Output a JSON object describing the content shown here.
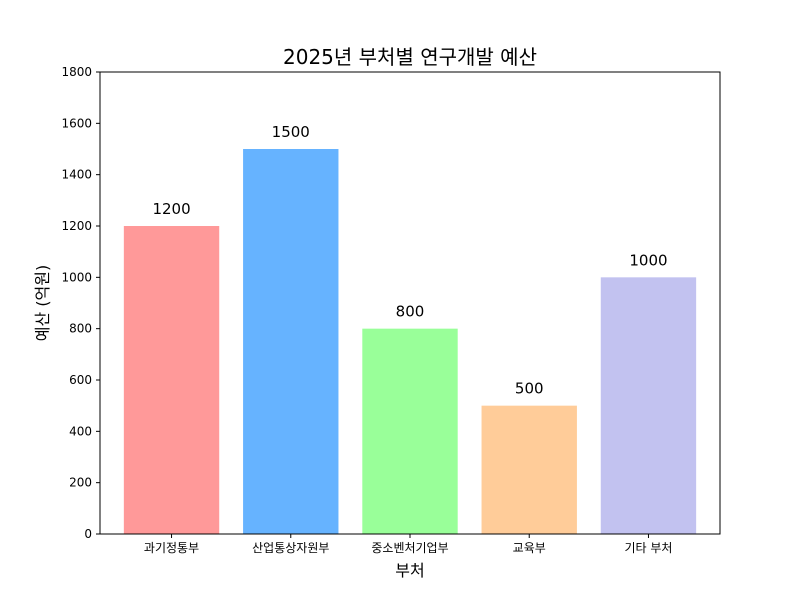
{
  "chart_data": {
    "type": "bar",
    "title": "2025년 부처별 연구개발 예산",
    "xlabel": "부처",
    "ylabel": "예산 (억원)",
    "categories": [
      "과기정통부",
      "산업통상자원부",
      "중소벤처기업부",
      "교육부",
      "기타 부처"
    ],
    "values": [
      1200,
      1500,
      800,
      500,
      1000
    ],
    "colors": [
      "#ff9999",
      "#66b3ff",
      "#99ff99",
      "#ffcc99",
      "#c2c2f0"
    ],
    "ylim": [
      0,
      1800
    ],
    "yticks": [
      0,
      200,
      400,
      600,
      800,
      1000,
      1200,
      1400,
      1600,
      1800
    ],
    "grid": false,
    "legend": "none"
  }
}
